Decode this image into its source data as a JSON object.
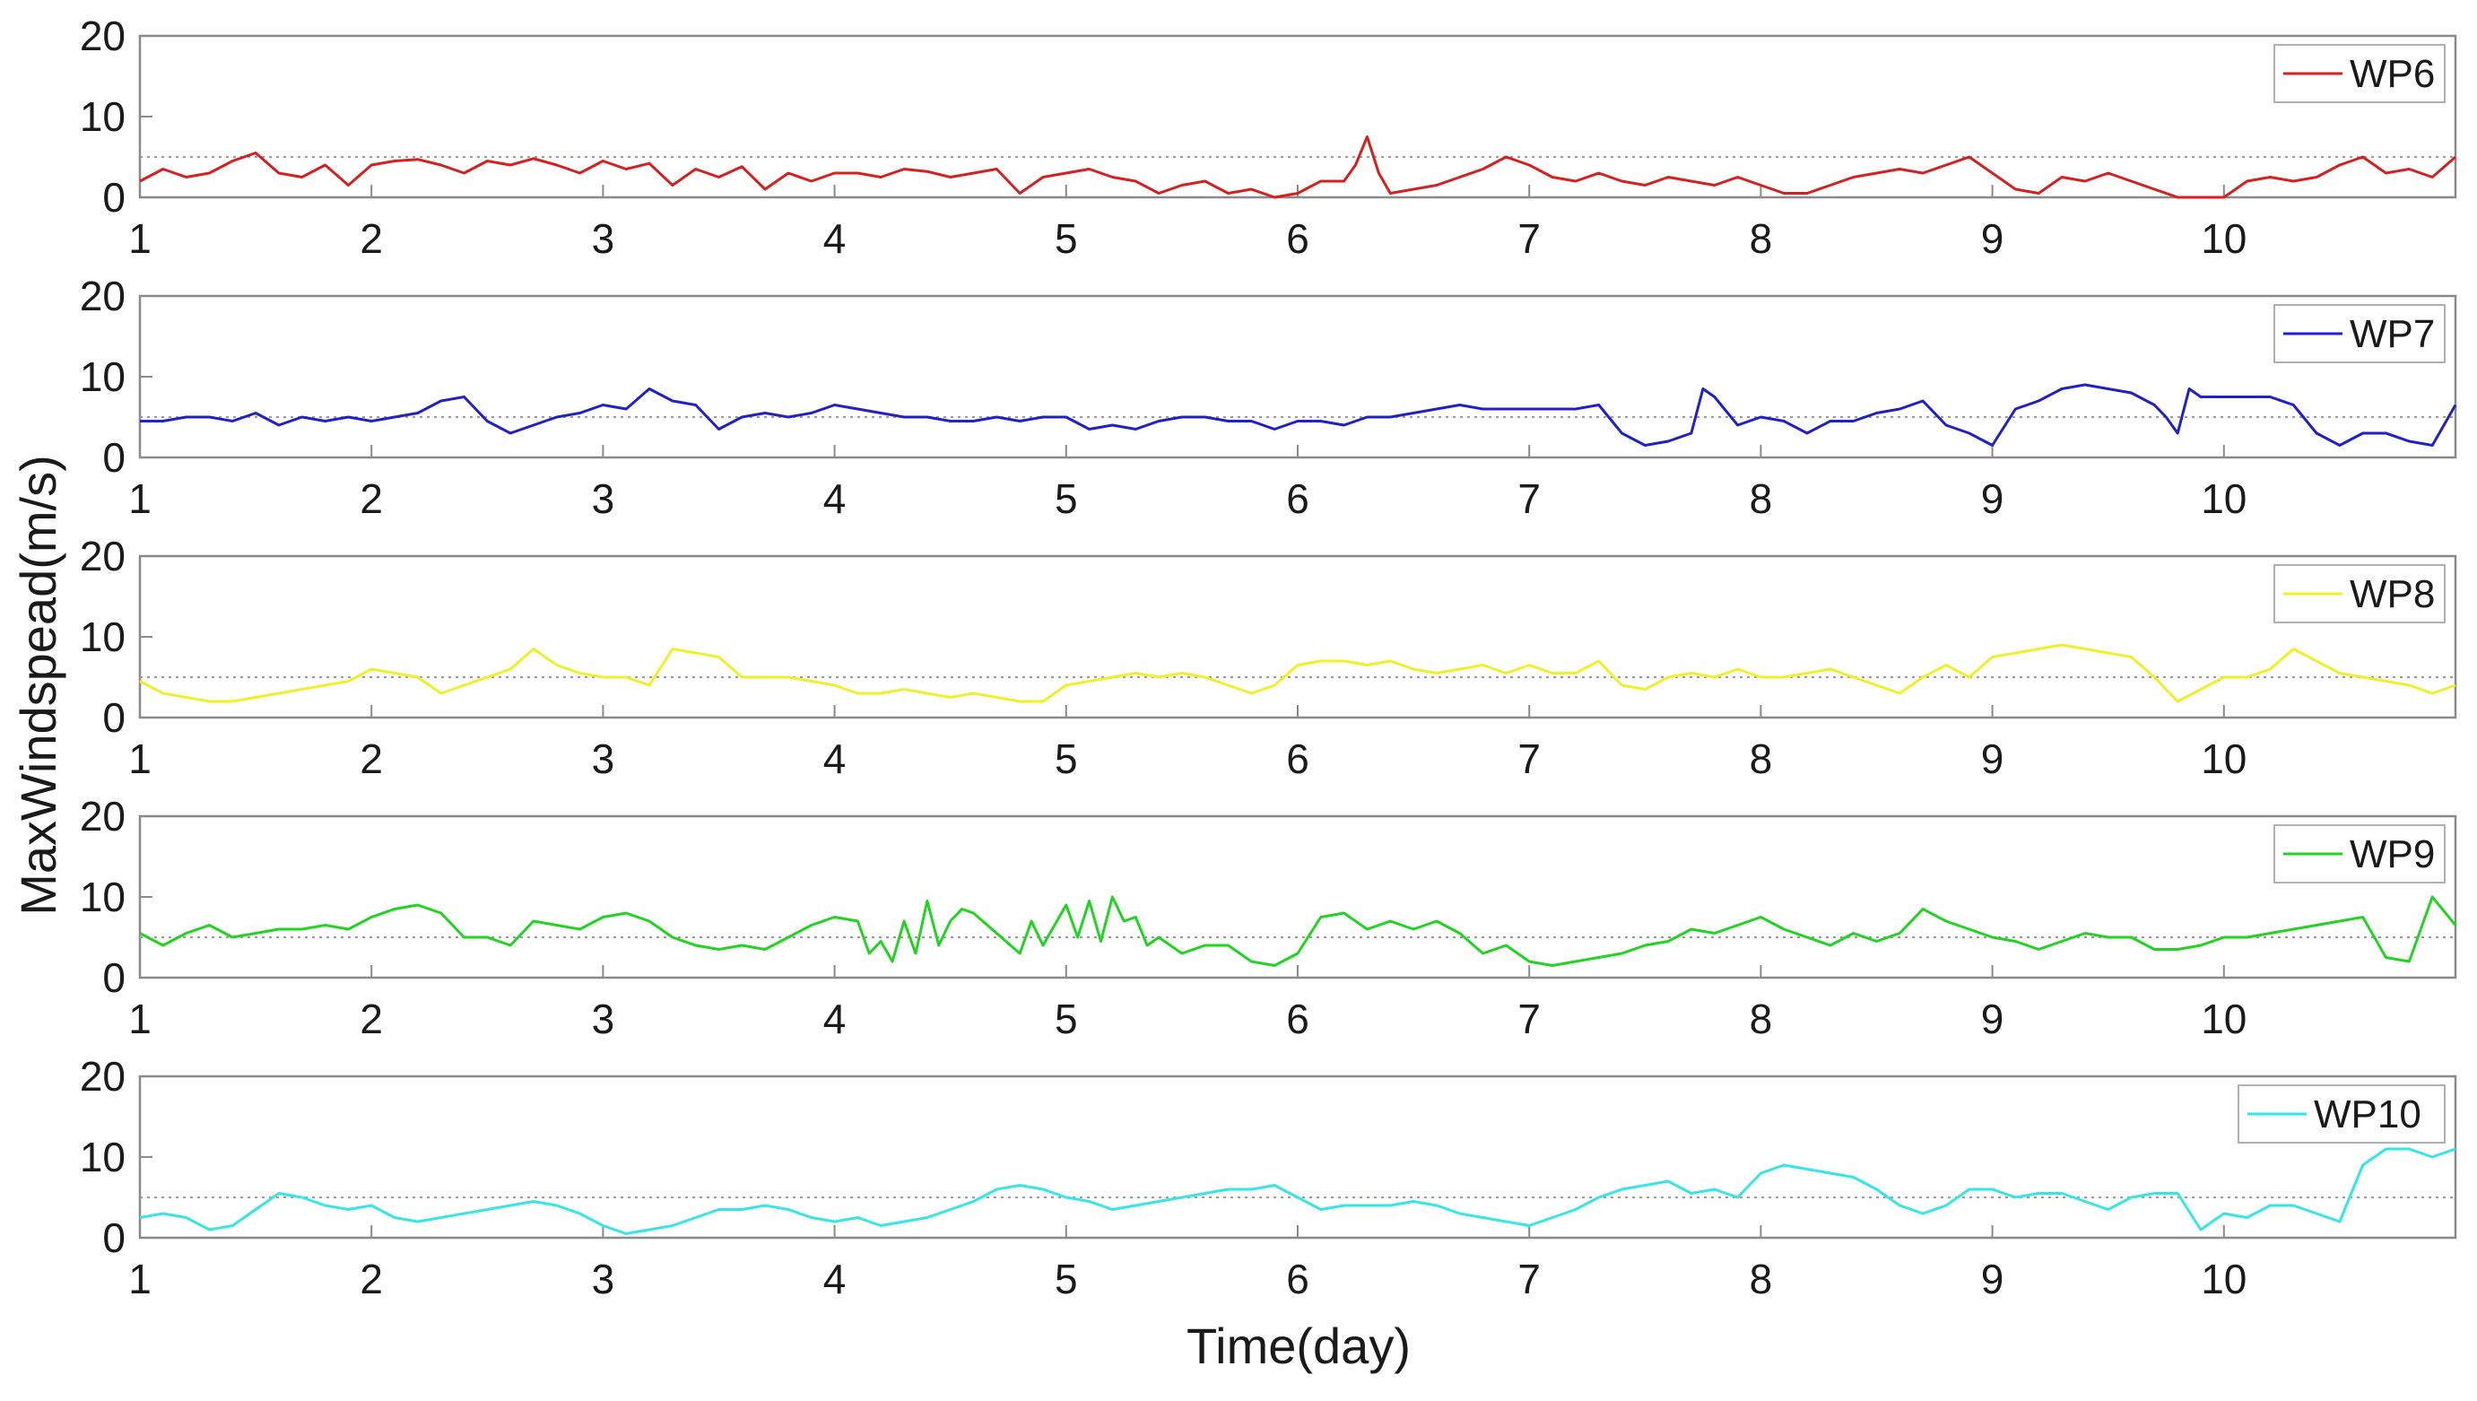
{
  "chart_data": {
    "type": "line",
    "xlabel": "Time(day)",
    "ylabel": "MaxWindspead(m/s)",
    "xlim": [
      1,
      11
    ],
    "ylim": [
      0,
      20
    ],
    "xticks": [
      1,
      2,
      3,
      4,
      5,
      6,
      7,
      8,
      9,
      10
    ],
    "yticks": [
      0,
      10,
      20
    ],
    "reference_line": {
      "y": 5,
      "style": "dotted",
      "color": "#9a9a9a"
    },
    "legend_position": "top-right",
    "colors": {
      "WP6": "#d62020",
      "WP7": "#2020c8",
      "WP8": "#f0f02a",
      "WP9": "#22d422",
      "WP10": "#36e6e6",
      "axes": "#8a8a8a",
      "reference": "#9a9a9a"
    },
    "series": [
      {
        "name": "WP6",
        "x": [
          1.0,
          1.1,
          1.2,
          1.3,
          1.4,
          1.5,
          1.6,
          1.7,
          1.8,
          1.9,
          2.0,
          2.1,
          2.2,
          2.3,
          2.4,
          2.5,
          2.6,
          2.7,
          2.8,
          2.9,
          3.0,
          3.1,
          3.2,
          3.3,
          3.4,
          3.5,
          3.6,
          3.7,
          3.8,
          3.9,
          4.0,
          4.1,
          4.2,
          4.3,
          4.4,
          4.5,
          4.6,
          4.7,
          4.8,
          4.9,
          5.0,
          5.1,
          5.2,
          5.3,
          5.4,
          5.5,
          5.6,
          5.7,
          5.8,
          5.9,
          6.0,
          6.1,
          6.2,
          6.25,
          6.3,
          6.35,
          6.4,
          6.5,
          6.6,
          6.7,
          6.8,
          6.9,
          7.0,
          7.1,
          7.2,
          7.3,
          7.4,
          7.5,
          7.6,
          7.7,
          7.8,
          7.9,
          8.0,
          8.1,
          8.2,
          8.3,
          8.4,
          8.5,
          8.6,
          8.7,
          8.8,
          8.9,
          9.0,
          9.1,
          9.2,
          9.3,
          9.4,
          9.5,
          9.6,
          9.7,
          9.8,
          9.9,
          10.0,
          10.1,
          10.2,
          10.3,
          10.4,
          10.5,
          10.6,
          10.7,
          10.8,
          10.9,
          11.0
        ],
        "y": [
          2,
          3.5,
          2.5,
          3,
          4.5,
          5.5,
          3,
          2.5,
          4,
          1.5,
          4,
          4.5,
          4.7,
          4,
          3,
          4.5,
          4,
          4.8,
          4,
          3,
          4.5,
          3.5,
          4.2,
          1.5,
          3.5,
          2.5,
          3.8,
          1,
          3,
          2,
          3,
          3,
          2.5,
          3.5,
          3.2,
          2.5,
          3,
          3.5,
          0.5,
          2.5,
          3,
          3.5,
          2.5,
          2,
          0.5,
          1.5,
          2,
          0.5,
          1,
          0,
          0.5,
          2,
          2,
          4,
          7.5,
          3,
          0.5,
          1,
          1.5,
          2.5,
          3.5,
          5,
          4,
          2.5,
          2,
          3,
          2,
          1.5,
          2.5,
          2,
          1.5,
          2.5,
          1.5,
          0.5,
          0.5,
          1.5,
          2.5,
          3,
          3.5,
          3,
          4,
          5,
          3,
          1,
          0.5,
          2.5,
          2,
          3,
          2,
          1,
          0,
          0,
          0,
          2,
          2.5,
          2,
          2.5,
          4,
          5,
          3,
          3.5,
          2.5,
          5
        ]
      },
      {
        "name": "WP7",
        "x": [
          1.0,
          1.1,
          1.2,
          1.3,
          1.4,
          1.5,
          1.6,
          1.7,
          1.8,
          1.9,
          2.0,
          2.1,
          2.2,
          2.3,
          2.4,
          2.5,
          2.6,
          2.7,
          2.8,
          2.9,
          3.0,
          3.1,
          3.2,
          3.3,
          3.4,
          3.5,
          3.6,
          3.7,
          3.8,
          3.9,
          4.0,
          4.1,
          4.2,
          4.3,
          4.4,
          4.5,
          4.6,
          4.7,
          4.8,
          4.9,
          5.0,
          5.1,
          5.2,
          5.3,
          5.4,
          5.5,
          5.6,
          5.7,
          5.8,
          5.9,
          6.0,
          6.1,
          6.2,
          6.3,
          6.4,
          6.5,
          6.6,
          6.7,
          6.8,
          6.9,
          7.0,
          7.1,
          7.2,
          7.3,
          7.4,
          7.5,
          7.6,
          7.7,
          7.75,
          7.8,
          7.9,
          8.0,
          8.1,
          8.2,
          8.3,
          8.4,
          8.5,
          8.6,
          8.7,
          8.8,
          8.9,
          9.0,
          9.1,
          9.2,
          9.3,
          9.4,
          9.5,
          9.6,
          9.7,
          9.75,
          9.8,
          9.85,
          9.9,
          10.0,
          10.1,
          10.2,
          10.3,
          10.4,
          10.5,
          10.6,
          10.7,
          10.8,
          10.9,
          11.0
        ],
        "y": [
          4.5,
          4.5,
          5,
          5,
          4.5,
          5.5,
          4,
          5,
          4.5,
          5,
          4.5,
          5,
          5.5,
          7,
          7.5,
          4.5,
          3,
          4,
          5,
          5.5,
          6.5,
          6,
          8.5,
          7,
          6.5,
          3.5,
          5,
          5.5,
          5,
          5.5,
          6.5,
          6,
          5.5,
          5,
          5,
          4.5,
          4.5,
          5,
          4.5,
          5,
          5,
          3.5,
          4,
          3.5,
          4.5,
          5,
          5,
          4.5,
          4.5,
          3.5,
          4.5,
          4.5,
          4,
          5,
          5,
          5.5,
          6,
          6.5,
          6,
          6,
          6,
          6,
          6,
          6.5,
          3,
          1.5,
          2,
          3,
          8.5,
          7.5,
          4,
          5,
          4.5,
          3,
          4.5,
          4.5,
          5.5,
          6,
          7,
          4,
          3,
          1.5,
          6,
          7,
          8.5,
          9,
          8.5,
          8,
          6.5,
          5,
          3,
          8.5,
          7.5,
          7.5,
          7.5,
          7.5,
          6.5,
          3,
          1.5,
          3,
          3,
          2,
          1.5,
          6.5
        ]
      },
      {
        "name": "WP8",
        "x": [
          1.0,
          1.1,
          1.2,
          1.3,
          1.4,
          1.5,
          1.6,
          1.7,
          1.8,
          1.9,
          2.0,
          2.1,
          2.2,
          2.3,
          2.4,
          2.5,
          2.6,
          2.7,
          2.8,
          2.9,
          3.0,
          3.1,
          3.2,
          3.3,
          3.4,
          3.5,
          3.6,
          3.7,
          3.8,
          3.9,
          4.0,
          4.1,
          4.2,
          4.3,
          4.4,
          4.5,
          4.6,
          4.7,
          4.8,
          4.9,
          5.0,
          5.1,
          5.2,
          5.3,
          5.4,
          5.5,
          5.6,
          5.7,
          5.8,
          5.9,
          6.0,
          6.1,
          6.2,
          6.3,
          6.4,
          6.5,
          6.6,
          6.7,
          6.8,
          6.9,
          7.0,
          7.1,
          7.2,
          7.3,
          7.4,
          7.5,
          7.6,
          7.7,
          7.8,
          7.9,
          8.0,
          8.1,
          8.2,
          8.3,
          8.4,
          8.5,
          8.6,
          8.7,
          8.8,
          8.9,
          9.0,
          9.1,
          9.2,
          9.3,
          9.4,
          9.5,
          9.6,
          9.7,
          9.8,
          9.9,
          10.0,
          10.1,
          10.2,
          10.3,
          10.4,
          10.5,
          10.6,
          10.7,
          10.8,
          10.9,
          11.0
        ],
        "y": [
          4.5,
          3,
          2.5,
          2,
          2,
          2.5,
          3,
          3.5,
          4,
          4.5,
          6,
          5.5,
          5,
          3,
          4,
          5,
          6,
          8.5,
          6.5,
          5.5,
          5,
          5,
          4,
          8.5,
          8,
          7.5,
          5,
          5,
          5,
          4.5,
          4,
          3,
          3,
          3.5,
          3,
          2.5,
          3,
          2.5,
          2,
          2,
          4,
          4.5,
          5,
          5.5,
          5,
          5.5,
          5,
          4,
          3,
          4,
          6.5,
          7,
          7,
          6.5,
          7,
          6,
          5.5,
          6,
          6.5,
          5.5,
          6.5,
          5.5,
          5.5,
          7,
          4,
          3.5,
          5,
          5.5,
          5,
          6,
          5,
          5,
          5.5,
          6,
          5,
          4,
          3,
          5,
          6.5,
          5,
          7.5,
          8,
          8.5,
          9,
          8.5,
          8,
          7.5,
          5,
          2,
          3.5,
          5,
          5,
          6,
          8.5,
          7,
          5.5,
          5,
          4.5,
          4,
          3,
          4
        ]
      },
      {
        "name": "WP9",
        "x": [
          1.0,
          1.1,
          1.2,
          1.3,
          1.4,
          1.5,
          1.6,
          1.7,
          1.8,
          1.9,
          2.0,
          2.1,
          2.2,
          2.3,
          2.4,
          2.5,
          2.6,
          2.7,
          2.8,
          2.9,
          3.0,
          3.1,
          3.2,
          3.3,
          3.4,
          3.5,
          3.6,
          3.7,
          3.8,
          3.9,
          4.0,
          4.1,
          4.15,
          4.2,
          4.25,
          4.3,
          4.35,
          4.4,
          4.45,
          4.5,
          4.55,
          4.6,
          4.7,
          4.8,
          4.85,
          4.9,
          5.0,
          5.05,
          5.1,
          5.15,
          5.2,
          5.25,
          5.3,
          5.35,
          5.4,
          5.5,
          5.6,
          5.7,
          5.8,
          5.9,
          6.0,
          6.1,
          6.2,
          6.3,
          6.4,
          6.5,
          6.6,
          6.7,
          6.8,
          6.9,
          7.0,
          7.1,
          7.2,
          7.3,
          7.4,
          7.5,
          7.6,
          7.7,
          7.8,
          7.9,
          8.0,
          8.1,
          8.2,
          8.3,
          8.4,
          8.5,
          8.6,
          8.7,
          8.8,
          8.9,
          9.0,
          9.1,
          9.2,
          9.3,
          9.4,
          9.5,
          9.6,
          9.7,
          9.8,
          9.9,
          10.0,
          10.1,
          10.2,
          10.3,
          10.4,
          10.5,
          10.6,
          10.7,
          10.8,
          10.9,
          11.0
        ],
        "y": [
          5.5,
          4,
          5.5,
          6.5,
          5,
          5.5,
          6,
          6,
          6.5,
          6,
          7.5,
          8.5,
          9,
          8,
          5,
          5,
          4,
          7,
          6.5,
          6,
          7.5,
          8,
          7,
          5,
          4,
          3.5,
          4,
          3.5,
          5,
          6.5,
          7.5,
          7,
          3,
          4.5,
          2,
          7,
          3,
          9.5,
          4,
          7,
          8.5,
          8,
          5.5,
          3,
          7,
          4,
          9,
          5,
          9.5,
          4.5,
          10,
          7,
          7.5,
          4,
          5,
          3,
          4,
          4,
          2,
          1.5,
          3,
          7.5,
          8,
          6,
          7,
          6,
          7,
          5.5,
          3,
          4,
          2,
          1.5,
          2,
          2.5,
          3,
          4,
          4.5,
          6,
          5.5,
          6.5,
          7.5,
          6,
          5,
          4,
          5.5,
          4.5,
          5.5,
          8.5,
          7,
          6,
          5,
          4.5,
          3.5,
          4.5,
          5.5,
          5,
          5,
          3.5,
          3.5,
          4,
          5,
          5,
          5.5,
          6,
          6.5,
          7,
          7.5,
          2.5,
          2,
          10,
          6.5
        ]
      },
      {
        "name": "WP10",
        "x": [
          1.0,
          1.1,
          1.2,
          1.3,
          1.4,
          1.5,
          1.6,
          1.7,
          1.8,
          1.9,
          2.0,
          2.1,
          2.2,
          2.3,
          2.4,
          2.5,
          2.6,
          2.7,
          2.8,
          2.9,
          3.0,
          3.1,
          3.2,
          3.3,
          3.4,
          3.5,
          3.6,
          3.7,
          3.8,
          3.9,
          4.0,
          4.1,
          4.2,
          4.3,
          4.4,
          4.5,
          4.6,
          4.7,
          4.8,
          4.9,
          5.0,
          5.1,
          5.2,
          5.3,
          5.4,
          5.5,
          5.6,
          5.7,
          5.8,
          5.9,
          6.0,
          6.1,
          6.2,
          6.3,
          6.4,
          6.5,
          6.6,
          6.7,
          6.8,
          6.9,
          7.0,
          7.1,
          7.2,
          7.3,
          7.4,
          7.5,
          7.6,
          7.7,
          7.8,
          7.9,
          8.0,
          8.1,
          8.2,
          8.3,
          8.4,
          8.5,
          8.6,
          8.7,
          8.8,
          8.9,
          9.0,
          9.1,
          9.2,
          9.3,
          9.4,
          9.5,
          9.6,
          9.7,
          9.8,
          9.9,
          10.0,
          10.1,
          10.2,
          10.3,
          10.4,
          10.5,
          10.6,
          10.7,
          10.8,
          10.9,
          11.0
        ],
        "y": [
          2.5,
          3,
          2.5,
          1,
          1.5,
          3.5,
          5.5,
          5,
          4,
          3.5,
          4,
          2.5,
          2,
          2.5,
          3,
          3.5,
          4,
          4.5,
          4,
          3,
          1.5,
          0.5,
          1,
          1.5,
          2.5,
          3.5,
          3.5,
          4,
          3.5,
          2.5,
          2,
          2.5,
          1.5,
          2,
          2.5,
          3.5,
          4.5,
          6,
          6.5,
          6,
          5,
          4.5,
          3.5,
          4,
          4.5,
          5,
          5.5,
          6,
          6,
          6.5,
          5,
          3.5,
          4,
          4,
          4,
          4.5,
          4,
          3,
          2.5,
          2,
          1.5,
          2.5,
          3.5,
          5,
          6,
          6.5,
          7,
          5.5,
          6,
          5,
          8,
          9,
          8.5,
          8,
          7.5,
          6,
          4,
          3,
          4,
          6,
          6,
          5,
          5.5,
          5.5,
          4.5,
          3.5,
          5,
          5.5,
          5.5,
          1,
          3,
          2.5,
          4,
          4,
          3,
          2,
          9,
          11,
          11,
          10,
          11
        ]
      }
    ]
  }
}
